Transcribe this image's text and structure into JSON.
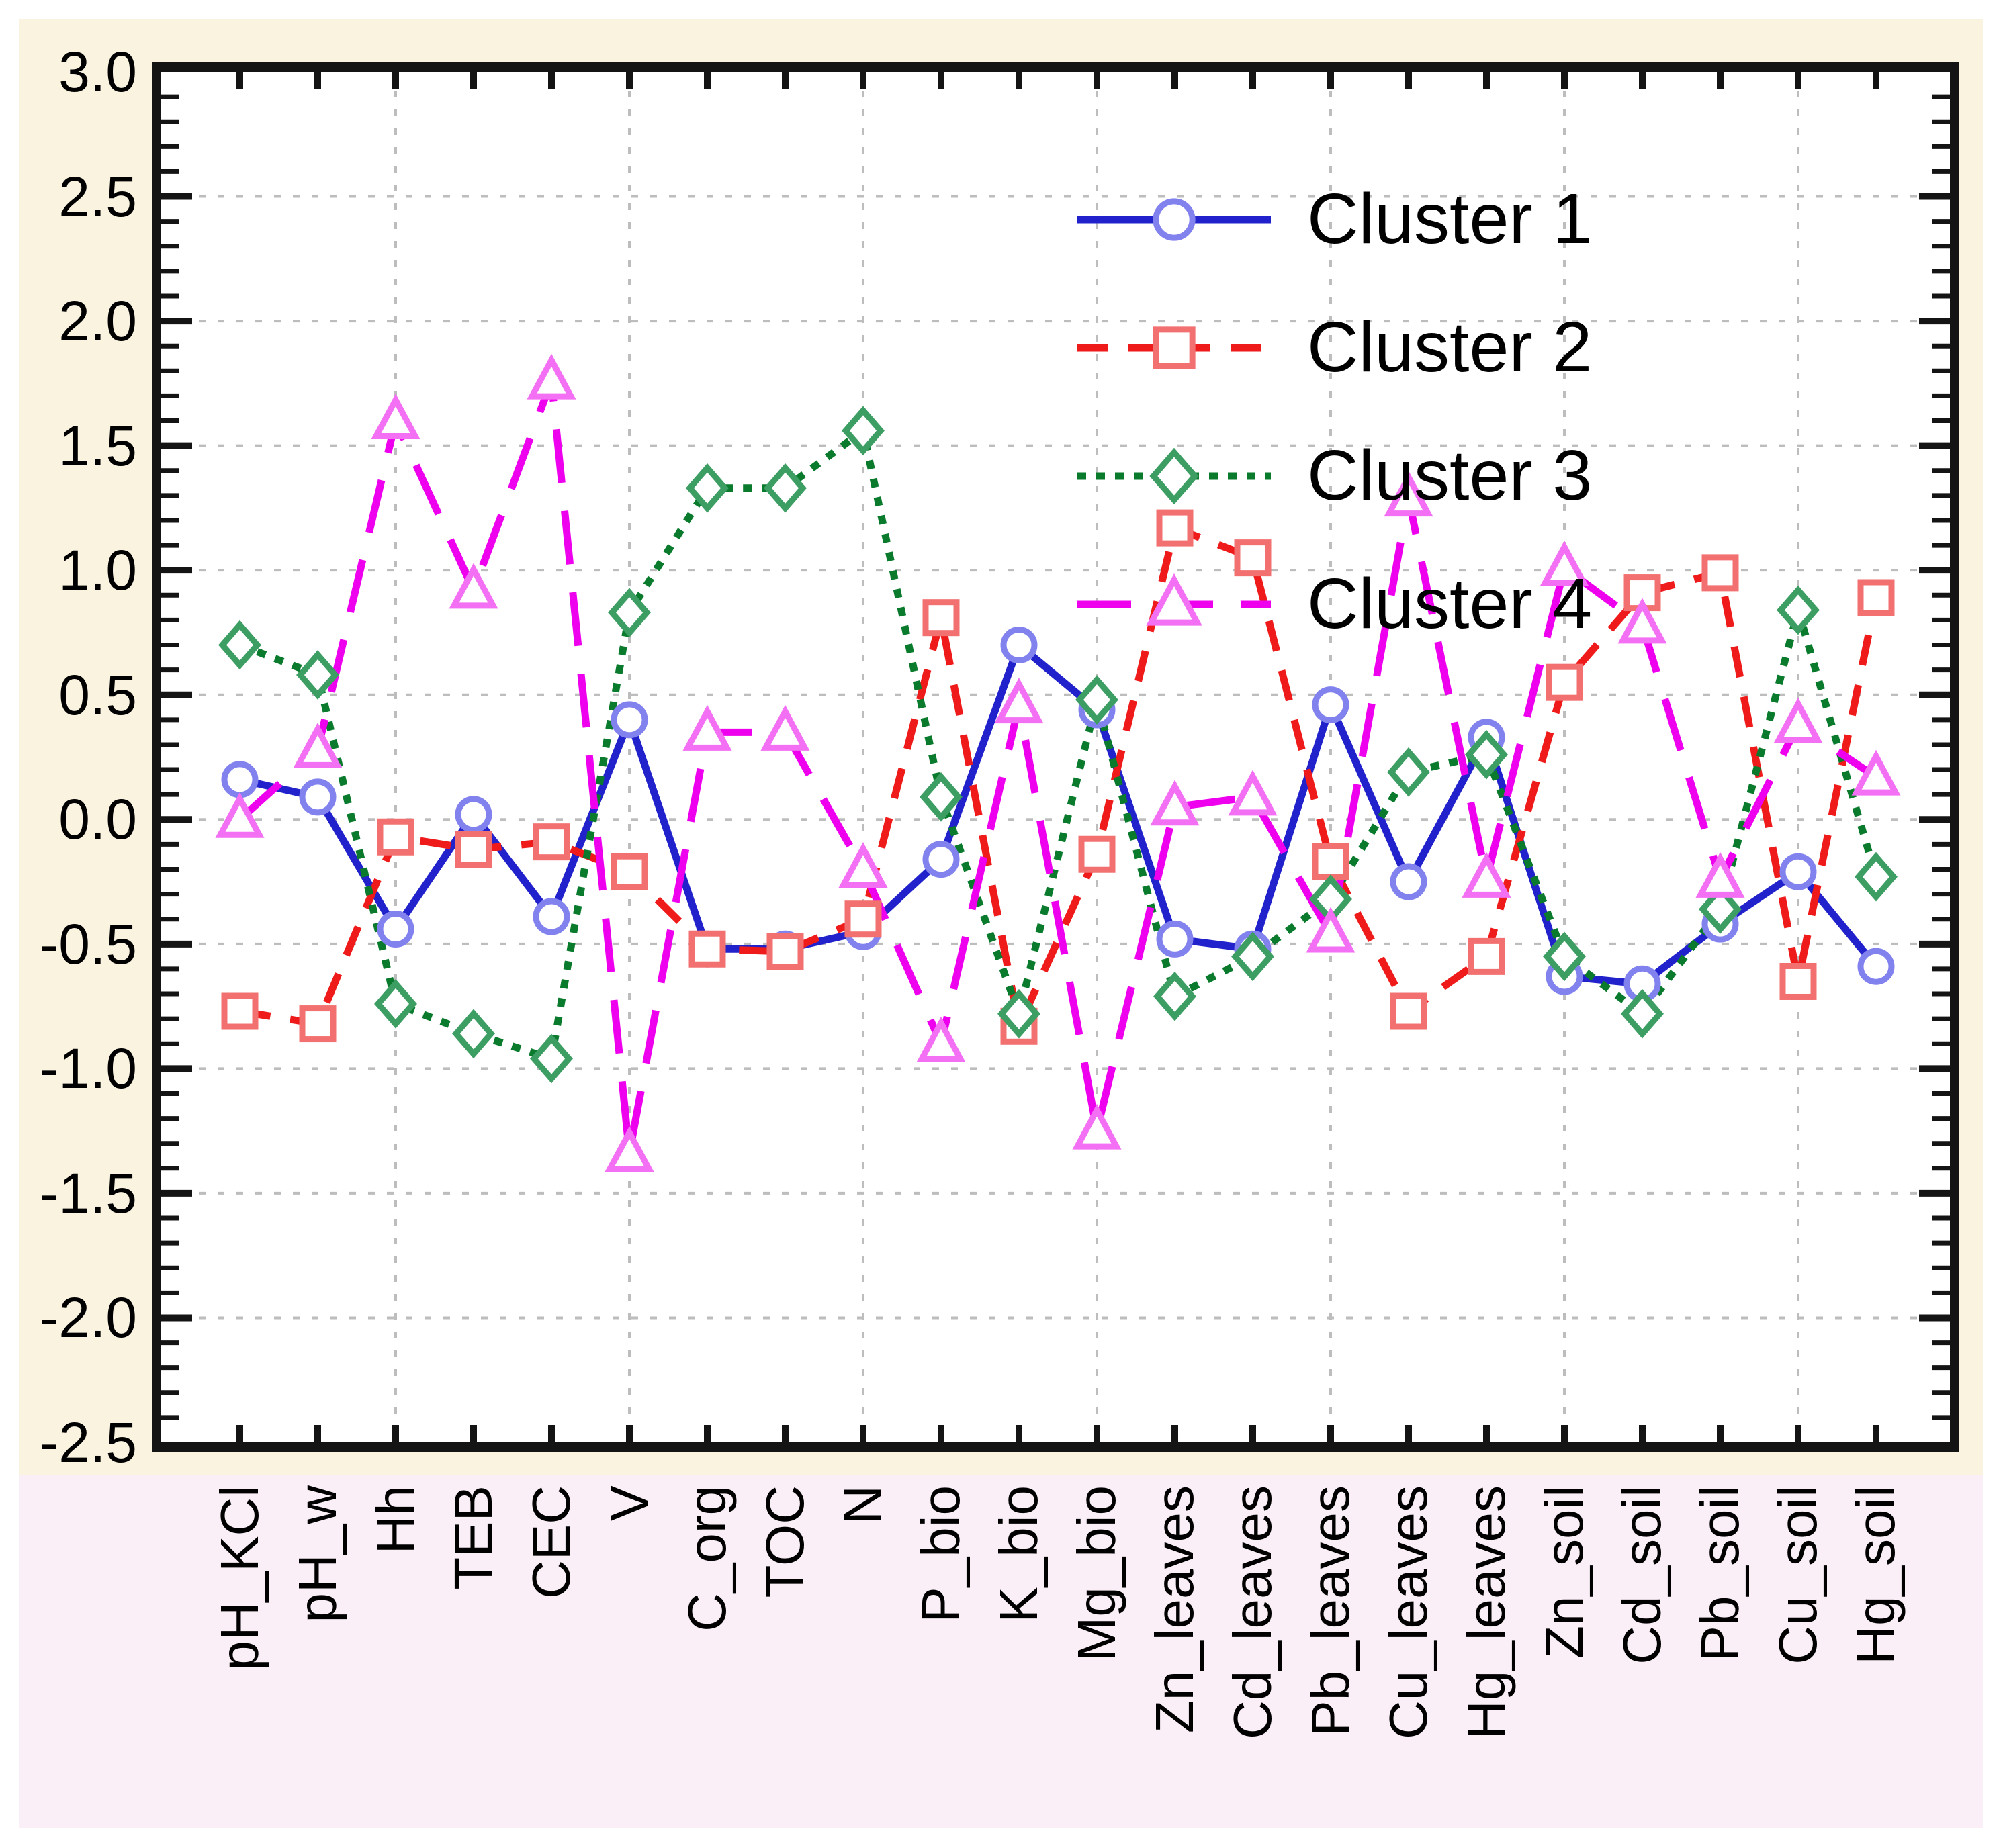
{
  "figure": {
    "background_color": "#FAF3E0",
    "label_strip_color": "#FAEFF7",
    "plot_background": "#FFFFFF",
    "grid_color": "#BDBDBD",
    "axis_color": "#141414"
  },
  "chart_data": {
    "type": "line",
    "title": "",
    "xlabel": "",
    "ylabel": "",
    "ylim": [
      -2.5,
      3.0
    ],
    "ytick_step": 0.5,
    "ytick_labels": [
      "3.0",
      "2.5",
      "2.0",
      "1.5",
      "1.0",
      "0.5",
      "0.0",
      "-0.5",
      "-1.0",
      "-1.5",
      "-2.0",
      "-2.5"
    ],
    "grid": true,
    "vgrid_category_indices": [
      2,
      5,
      8,
      11,
      14,
      17,
      20
    ],
    "legend_position": "inside-top-right",
    "categories": [
      "pH_KCl",
      "pH_w",
      "Hh",
      "TEB",
      "CEC",
      "V",
      "C_org",
      "TOC",
      "N",
      "P_bio",
      "K_bio",
      "Mg_bio",
      "Zn_leaves",
      "Cd_leaves",
      "Pb_leaves",
      "Cu_leaves",
      "Hg_leaves",
      "Zn_soil",
      "Cd_soil",
      "Pb_soil",
      "Cu_soil",
      "Hg_soil"
    ],
    "series": [
      {
        "name": "Cluster 1",
        "marker": "circle",
        "line_style": "solid",
        "color": "#2222CC",
        "marker_color": "#8282EF",
        "values": [
          0.16,
          0.09,
          -0.44,
          0.02,
          -0.39,
          0.4,
          -0.52,
          -0.52,
          -0.45,
          -0.16,
          0.7,
          0.44,
          -0.48,
          -0.52,
          0.46,
          -0.25,
          0.33,
          -0.63,
          -0.66,
          -0.42,
          -0.21,
          -0.59
        ]
      },
      {
        "name": "Cluster 2",
        "marker": "square",
        "line_style": "dashed",
        "color": "#EF1A1A",
        "marker_color": "#F37070",
        "values": [
          -0.77,
          -0.82,
          -0.07,
          -0.12,
          -0.09,
          -0.21,
          -0.52,
          -0.53,
          -0.4,
          0.81,
          -0.83,
          -0.14,
          1.17,
          1.05,
          -0.17,
          -0.77,
          -0.55,
          0.55,
          0.91,
          0.99,
          -0.65,
          0.89
        ]
      },
      {
        "name": "Cluster 3",
        "marker": "diamond",
        "line_style": "dotted",
        "color": "#0A7A2D",
        "marker_color": "#3C9E62",
        "values": [
          0.7,
          0.58,
          -0.74,
          -0.86,
          -0.96,
          0.83,
          1.33,
          1.33,
          1.56,
          0.09,
          -0.78,
          0.48,
          -0.71,
          -0.55,
          -0.32,
          0.19,
          0.26,
          -0.55,
          -0.78,
          -0.36,
          0.84,
          -0.23
        ]
      },
      {
        "name": "Cluster 4",
        "marker": "triangle",
        "line_style": "longdash",
        "color": "#EE00EE",
        "marker_color": "#F36FF3",
        "values": [
          0.0,
          0.28,
          1.6,
          0.92,
          1.76,
          -1.34,
          0.35,
          0.35,
          -0.2,
          -0.9,
          0.46,
          -1.25,
          0.05,
          0.09,
          -0.46,
          1.29,
          -0.24,
          1.01,
          0.78,
          -0.24,
          0.38,
          0.17
        ]
      }
    ]
  }
}
